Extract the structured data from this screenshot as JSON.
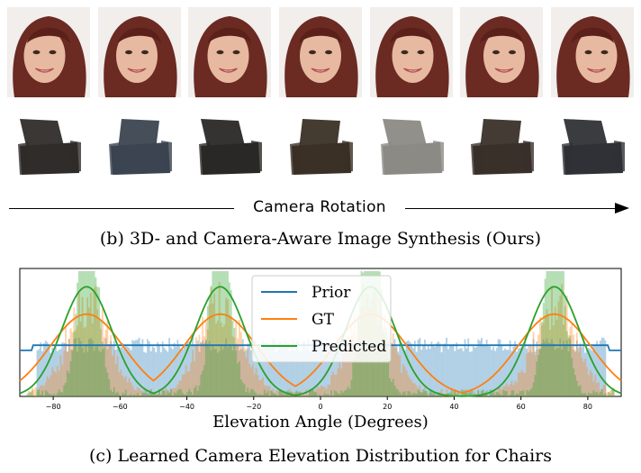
{
  "panel_b": {
    "axis_label": "Camera Rotation",
    "caption": "(b) 3D- and Camera-Aware Image Synthesis (Ours)",
    "face_images": 7,
    "chair_images": 7
  },
  "panel_c": {
    "caption": "(c) Learned Camera Elevation Distribution for Chairs"
  },
  "chart_data": {
    "type": "line",
    "xlabel": "Elevation Angle (Degrees)",
    "xlim": [
      -90,
      90
    ],
    "xticks": [
      -80,
      -60,
      -40,
      -20,
      0,
      20,
      40,
      60,
      80
    ],
    "legend_position": "top-center",
    "grid": false,
    "series": [
      {
        "name": "Prior",
        "color": "#1f77b4",
        "kind": "uniform",
        "level": 0.028,
        "range": [
          -85,
          85
        ]
      },
      {
        "name": "GT",
        "color": "#ff7f0e",
        "kind": "mixture",
        "centers": [
          -70,
          -30,
          15,
          70
        ],
        "sigma": 11,
        "peak": 0.045
      },
      {
        "name": "Predicted",
        "color": "#2ca02c",
        "kind": "mixture",
        "centers": [
          -70,
          -30,
          15,
          70
        ],
        "sigma": 7.5,
        "peak": 0.06
      }
    ],
    "histograms": [
      {
        "series": "Prior",
        "color": "#1f77b4"
      },
      {
        "series": "GT",
        "color": "#ff7f0e"
      },
      {
        "series": "Predicted",
        "color": "#2ca02c"
      }
    ]
  }
}
